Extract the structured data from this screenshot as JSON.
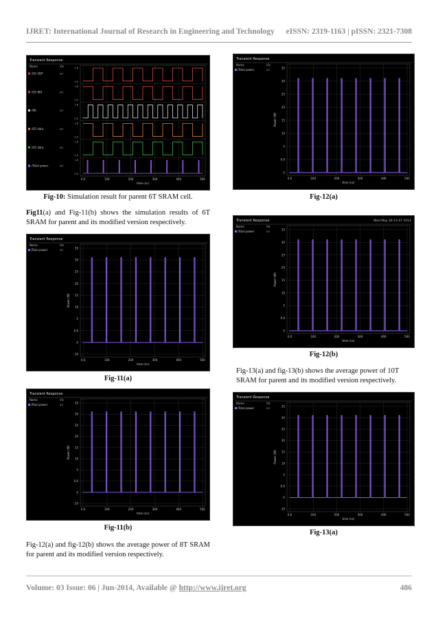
{
  "header": {
    "journal": "IJRET: International Journal of Research in Engineering and Technology",
    "issn": "eISSN: 2319-1163 | pISSN: 2321-7308"
  },
  "footer": {
    "volume_text": "Volume: 03 Issue: 06 | Jun-2014, Available @ ",
    "url": "http://www.ijret.org",
    "page": "486"
  },
  "figures": {
    "fig10": {
      "label": "Fig-10:",
      "caption": " Simulation result for parent 6T SRAM cell.",
      "title": "Transient Response",
      "x_ticks": [
        "0.0",
        "100",
        "200",
        "300",
        "400",
        "500"
      ],
      "x_label": "time (ns)",
      "legend_name": "Name",
      "legend_vis": "Vis",
      "traces": [
        {
          "name": "/Q5 VDP",
          "color": "#d64a4a"
        },
        {
          "name": "/Q5 WD",
          "color": "#d64a4a"
        },
        {
          "name": "/WL",
          "color": "#e8e8e8"
        },
        {
          "name": "/Q5 data",
          "color": "#e0803a"
        },
        {
          "name": "/Q5 data",
          "color": "#3fb54a"
        },
        {
          "name": "/Total power",
          "color": "#9966ff"
        }
      ]
    },
    "fig11a": {
      "caption": "Fig-11(a)",
      "title": "Transient Response",
      "legend_name": "Name",
      "legend_vis": "Vis",
      "trace": "/Total power",
      "y_label": "Power (W)",
      "y_ticks": [
        "35",
        "30",
        "25",
        "20",
        "15",
        "10",
        "5",
        "0.0",
        "-5",
        "-10"
      ],
      "x_ticks": [
        "0.0",
        "100",
        "200",
        "300",
        "400",
        "500"
      ],
      "x_label": "time (ns)",
      "spike_count": 8
    },
    "fig11b": {
      "caption": "Fig-11(b)",
      "title": "Transient Response",
      "legend_name": "Name",
      "legend_vis": "Vis",
      "trace": "/Total power",
      "y_label": "Power (W)",
      "y_ticks": [
        "35",
        "30",
        "25",
        "20",
        "15",
        "10",
        "5",
        "0.0",
        "-5",
        "-10"
      ],
      "x_ticks": [
        "0.0",
        "100",
        "200",
        "300",
        "400",
        "500"
      ],
      "x_label": "time (ns)",
      "spike_count": 8
    },
    "fig12a": {
      "caption": "Fig-12(a)",
      "title": "Transient Response",
      "legend_name": "Name",
      "legend_vis": "Vis",
      "trace": "/Total power",
      "y_label": "Power (W)",
      "y_ticks": [
        "35",
        "30",
        "25",
        "20",
        "15",
        "10",
        "5",
        "0.0",
        "-5"
      ],
      "x_ticks": [
        "0.0",
        "100",
        "200",
        "300",
        "400",
        "500"
      ],
      "x_label": "time (ns)",
      "spike_count": 8
    },
    "fig12b": {
      "caption": "Fig-12(b)",
      "title": "Transient Response",
      "timestamp": "Wed May 28 12:47 2014",
      "legend_name": "Name",
      "legend_vis": "Vis",
      "trace": "/Total power",
      "y_label": "Power (W)",
      "y_ticks": [
        "35",
        "30",
        "25",
        "20",
        "15",
        "10",
        "5",
        "0.0",
        "-5"
      ],
      "x_ticks": [
        "0.0",
        "100",
        "200",
        "300",
        "400",
        "500"
      ],
      "x_label": "time (ns)",
      "spike_count": 8
    },
    "fig13a": {
      "caption": "Fig-13(a)",
      "title": "Transient Response",
      "legend_name": "Name",
      "legend_vis": "Vis",
      "trace": "/Total power",
      "y_label": "Power (W)",
      "y_ticks": [
        "35",
        "30",
        "25",
        "20",
        "15",
        "10",
        "5",
        "0.0",
        "-5",
        "-10"
      ],
      "x_ticks": [
        "0.0",
        "100",
        "200",
        "300",
        "400",
        "500"
      ],
      "x_label": "time (ns)",
      "spike_count": 8
    }
  },
  "paragraphs": {
    "p_fig11": {
      "bold": "Fig11",
      "text": "(a) and Fig-11(b) shows the simulation results of 6T SRAM for parent and its modified version respectively."
    },
    "p_fig12": {
      "text": "Fig-12(a) and fig-12(b) shows the average power of 8T SRAM for parent and its modified version respectively."
    },
    "p_fig13": {
      "text": "Fig-13(a) and fig-13(b) shows the average power of 10T SRAM for parent and its modified version respectively."
    }
  },
  "colors": {
    "plot_background": "#000000",
    "grid": "#2b3a2b",
    "power_trace": "#9966ff",
    "header_text": "#8c8c8c"
  }
}
